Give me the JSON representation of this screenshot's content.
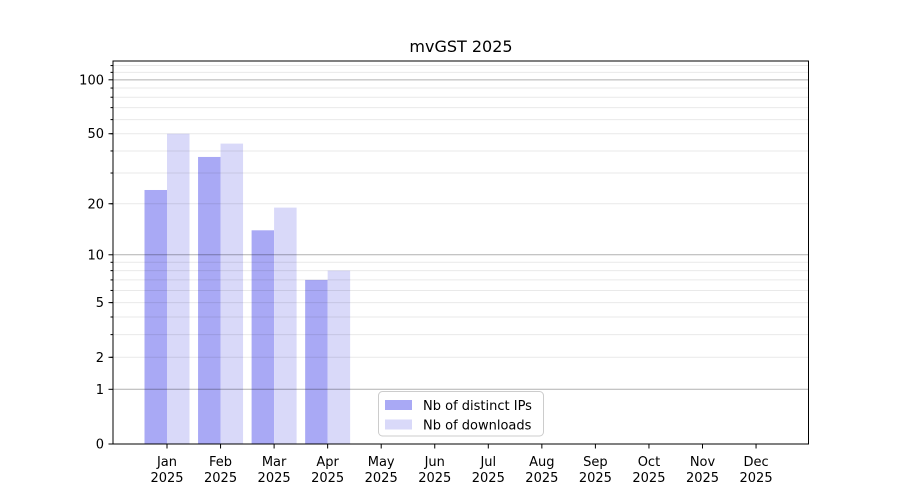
{
  "title": "mvGST 2025",
  "chart_data": {
    "type": "bar",
    "title": "mvGST 2025",
    "x_categories": [
      "Jan",
      "Feb",
      "Mar",
      "Apr",
      "May",
      "Jun",
      "Jul",
      "Aug",
      "Sep",
      "Oct",
      "Nov",
      "Dec"
    ],
    "x_year_suffix": "2025",
    "series": [
      {
        "name": "Nb of distinct IPs",
        "color": "#a9a9f5",
        "values": [
          24,
          37,
          14,
          7,
          null,
          null,
          null,
          null,
          null,
          null,
          null,
          null
        ]
      },
      {
        "name": "Nb of downloads",
        "color": "#d9d9f9",
        "values": [
          50,
          44,
          19,
          8,
          null,
          null,
          null,
          null,
          null,
          null,
          null,
          null
        ]
      }
    ],
    "y_scale": "log1p",
    "ylim": [
      0,
      127
    ],
    "y_ticks_labeled": [
      0,
      1,
      2,
      5,
      10,
      20,
      50,
      100
    ],
    "y_gridlines_major": [
      1,
      10,
      100
    ],
    "y_gridlines_minor": [
      2,
      3,
      4,
      5,
      6,
      7,
      8,
      9,
      20,
      30,
      40,
      50,
      60,
      70,
      80,
      90,
      110,
      120
    ],
    "grid": true,
    "legend": {
      "position": "lower center"
    },
    "colors": {
      "grid_minor": "#e9e9e9",
      "grid_major": "#b0b0b0",
      "axis": "#000000",
      "legend_border": "#cccccc",
      "legend_background": "#ffffff"
    }
  }
}
